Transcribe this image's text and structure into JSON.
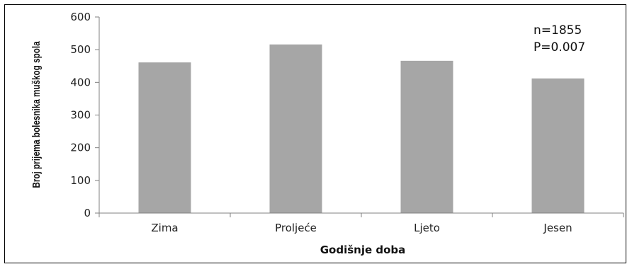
{
  "chart_data": {
    "type": "bar",
    "categories": [
      "Zima",
      "Proljeće",
      "Ljeto",
      "Jesen"
    ],
    "values": [
      461,
      516,
      466,
      412
    ],
    "title": "",
    "xlabel": "Godišnje doba",
    "ylabel": "Broj prijema bolesnika muškog spola",
    "ylim": [
      0,
      600
    ],
    "yticks": [
      0,
      100,
      200,
      300,
      400,
      500,
      600
    ],
    "grid": false,
    "bar_color": "#a6a6a6",
    "annotations": [
      "n=1855",
      "P=0.007"
    ]
  }
}
